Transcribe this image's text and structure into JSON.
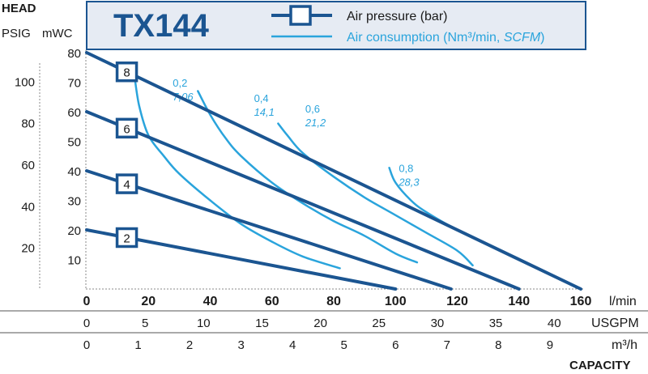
{
  "chart_data": {
    "type": "line",
    "title": "TX144",
    "header_left": {
      "line1": "HEAD",
      "psig_label": "PSIG",
      "mwc_label": "mWC"
    },
    "capacity_label": "CAPACITY",
    "legend": {
      "pressure": "Air pressure (bar)",
      "consumption_main": "Air consumption (Nm³/min, ",
      "consumption_italic": "SCFM",
      "consumption_tail": ")"
    },
    "colors": {
      "pressure": "#1b5591",
      "consumption": "#2aa4dc",
      "text": "#1a1a1a",
      "header_bg": "#e6ebf3",
      "header_border": "#1b5591"
    },
    "axes": {
      "x_lmin": {
        "label": "l/min",
        "range": [
          0,
          160
        ],
        "ticks": [
          "0",
          "20",
          "40",
          "60",
          "80",
          "100",
          "120",
          "140",
          "160"
        ]
      },
      "x_usgpm": {
        "label": "USGPM",
        "ticks": [
          "0",
          "5",
          "10",
          "15",
          "20",
          "25",
          "30",
          "35",
          "40"
        ]
      },
      "x_m3h": {
        "label": "m³/h",
        "ticks": [
          "0",
          "1",
          "2",
          "3",
          "4",
          "5",
          "6",
          "7",
          "8",
          "9"
        ]
      },
      "y_mwc": {
        "label": "mWC",
        "range": [
          0,
          80
        ],
        "ticks": [
          "10",
          "20",
          "30",
          "40",
          "50",
          "60",
          "70",
          "80"
        ]
      },
      "y_psig": {
        "label": "PSIG",
        "ticks": [
          "20",
          "40",
          "60",
          "80",
          "100"
        ]
      }
    },
    "pressure_series": [
      {
        "name": "2",
        "x": [
          0,
          100
        ],
        "y": [
          20,
          0
        ]
      },
      {
        "name": "4",
        "x": [
          0,
          118
        ],
        "y": [
          40,
          0
        ]
      },
      {
        "name": "6",
        "x": [
          0,
          140
        ],
        "y": [
          60,
          0
        ]
      },
      {
        "name": "8",
        "x": [
          0,
          160
        ],
        "y": [
          80,
          0
        ]
      }
    ],
    "consumption_series": [
      {
        "name": "0,2",
        "sub": "7,06",
        "x": [
          15.5,
          17,
          20,
          25,
          30,
          40,
          50,
          60,
          70,
          82
        ],
        "y": [
          72,
          62,
          52,
          45,
          39,
          30,
          22,
          16,
          11,
          7
        ]
      },
      {
        "name": "0,4",
        "sub": "14,1",
        "x": [
          36,
          40,
          45,
          50,
          60,
          70,
          80,
          90,
          100,
          107
        ],
        "y": [
          67,
          59,
          51,
          45,
          36,
          29,
          23,
          18,
          12,
          9
        ]
      },
      {
        "name": "0,6",
        "sub": "21,2",
        "x": [
          62,
          65,
          70,
          80,
          90,
          100,
          110,
          120,
          125
        ],
        "y": [
          56,
          52,
          46,
          38,
          31,
          25,
          19,
          13,
          8
        ]
      },
      {
        "name": "0,8",
        "sub": "28,3",
        "x": [
          98,
          100,
          105,
          110,
          120,
          130,
          138
        ],
        "y": [
          41,
          36,
          30,
          26,
          20,
          15,
          11
        ]
      }
    ]
  }
}
